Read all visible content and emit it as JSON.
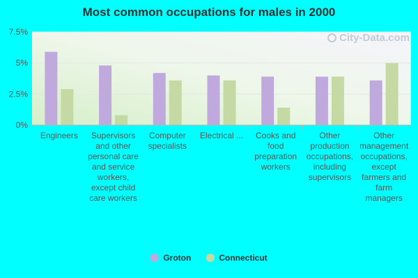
{
  "chart_data": {
    "type": "bar",
    "title": "Most common occupations for males in 2000",
    "categories": [
      "Engineers",
      "Supervisors and other personal care and service workers, except child care workers",
      "Computer specialists",
      "Electrical ...",
      "Cooks and food preparation workers",
      "Other production occupations, including supervisors",
      "Other management occupations, except farmers and farm managers"
    ],
    "series": [
      {
        "name": "Groton",
        "color": "#c0a9dc",
        "values": [
          5.9,
          4.8,
          4.2,
          4.0,
          3.9,
          3.9,
          3.6
        ]
      },
      {
        "name": "Connecticut",
        "color": "#c5d9a4",
        "values": [
          2.9,
          0.8,
          3.6,
          3.6,
          1.4,
          3.9,
          5.0
        ]
      }
    ],
    "yticks": [
      "0%",
      "2.5%",
      "5%",
      "7.5%"
    ],
    "ytick_values": [
      0,
      2.5,
      5,
      7.5
    ],
    "ylim": [
      0,
      7.5
    ],
    "xlabel": "",
    "ylabel": "",
    "grid": true,
    "legend_position": "bottom"
  },
  "watermark": {
    "text": "City-Data.com",
    "icon": "magnifier-icon"
  }
}
